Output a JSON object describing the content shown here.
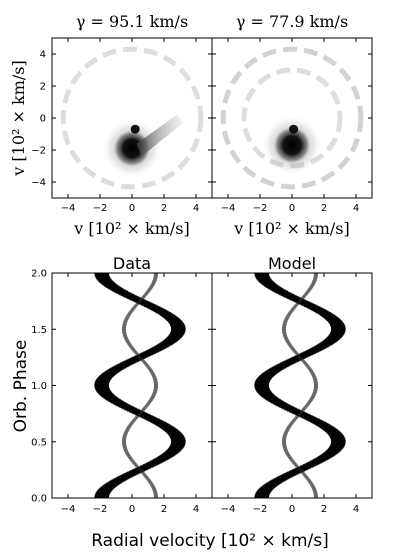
{
  "chart_data": [
    {
      "type": "heatmap",
      "panel": "doppler-map-left",
      "title": "γ = 95.1 km/s",
      "xlabel": "v [10² × km/s]",
      "ylabel": "v [10² × km/s]",
      "xlim": [
        -5,
        5
      ],
      "ylim": [
        -5,
        5
      ],
      "xticks": [
        -4,
        -2,
        0,
        2,
        4
      ],
      "yticks": [
        -4,
        -2,
        0,
        2,
        4
      ],
      "features": [
        {
          "name": "primary-emission-spot",
          "x": 0,
          "y": -1.9,
          "intensity": 1.0
        },
        {
          "name": "secondary-spot",
          "x": 0.2,
          "y": -0.7,
          "intensity": 0.9
        },
        {
          "name": "stream-arm",
          "x": 1.6,
          "y": -0.9,
          "intensity": 0.5
        },
        {
          "name": "outer-ring",
          "radius": 4.3,
          "intensity": 0.15
        }
      ]
    },
    {
      "type": "heatmap",
      "panel": "doppler-map-right",
      "title": "γ = 77.9 km/s",
      "xlabel": "v [10² × km/s]",
      "ylabel": "",
      "xlim": [
        -5,
        5
      ],
      "ylim": [
        -5,
        5
      ],
      "xticks": [
        -4,
        -2,
        0,
        2,
        4
      ],
      "features": [
        {
          "name": "primary-emission-spot",
          "x": 0,
          "y": -1.7,
          "intensity": 1.0
        },
        {
          "name": "secondary-spot",
          "x": 0.1,
          "y": -0.7,
          "intensity": 0.9
        },
        {
          "name": "outer-ring",
          "radius": 4.3,
          "intensity": 0.2
        },
        {
          "name": "inner-ring",
          "radius": 3.0,
          "intensity": 0.15
        }
      ]
    },
    {
      "type": "heatmap",
      "panel": "trailed-spectra-data",
      "title": "Data",
      "xlabel": "Radial velocity [10² × km/s]",
      "ylabel": "Orb. Phase",
      "xlim": [
        -5,
        5
      ],
      "ylim": [
        0.0,
        2.0
      ],
      "xticks": [
        -4,
        -2,
        0,
        2,
        4
      ],
      "yticks": [
        0.0,
        0.5,
        1.0,
        1.5,
        2.0
      ],
      "components": [
        {
          "name": "primary-s-wave",
          "gamma": 0.5,
          "amplitude": 2.4,
          "phase_offset": 0.0
        },
        {
          "name": "secondary-s-wave",
          "gamma": 0.5,
          "amplitude": 1.0,
          "phase_offset": 0.5
        }
      ]
    },
    {
      "type": "heatmap",
      "panel": "trailed-spectra-model",
      "title": "Model",
      "xlabel": "Radial velocity [10² × km/s]",
      "ylabel": "",
      "xlim": [
        -5,
        5
      ],
      "ylim": [
        0.0,
        2.0
      ],
      "xticks": [
        -4,
        -2,
        0,
        2,
        4
      ],
      "components": [
        {
          "name": "primary-s-wave",
          "gamma": 0.5,
          "amplitude": 2.4,
          "phase_offset": 0.0
        },
        {
          "name": "secondary-s-wave",
          "gamma": 0.5,
          "amplitude": 1.0,
          "phase_offset": 0.5
        }
      ]
    }
  ],
  "labels": {
    "map_left_title": "γ = 95.1 km/s",
    "map_right_title": "γ = 77.9 km/s",
    "map_xlabel": "v [10² × km/s]",
    "map_ylabel": "v [10² × km/s]",
    "trail_left_title": "Data",
    "trail_right_title": "Model",
    "trail_ylabel": "Orb. Phase",
    "trail_xlabel": "Radial velocity [10² × km/s]"
  }
}
